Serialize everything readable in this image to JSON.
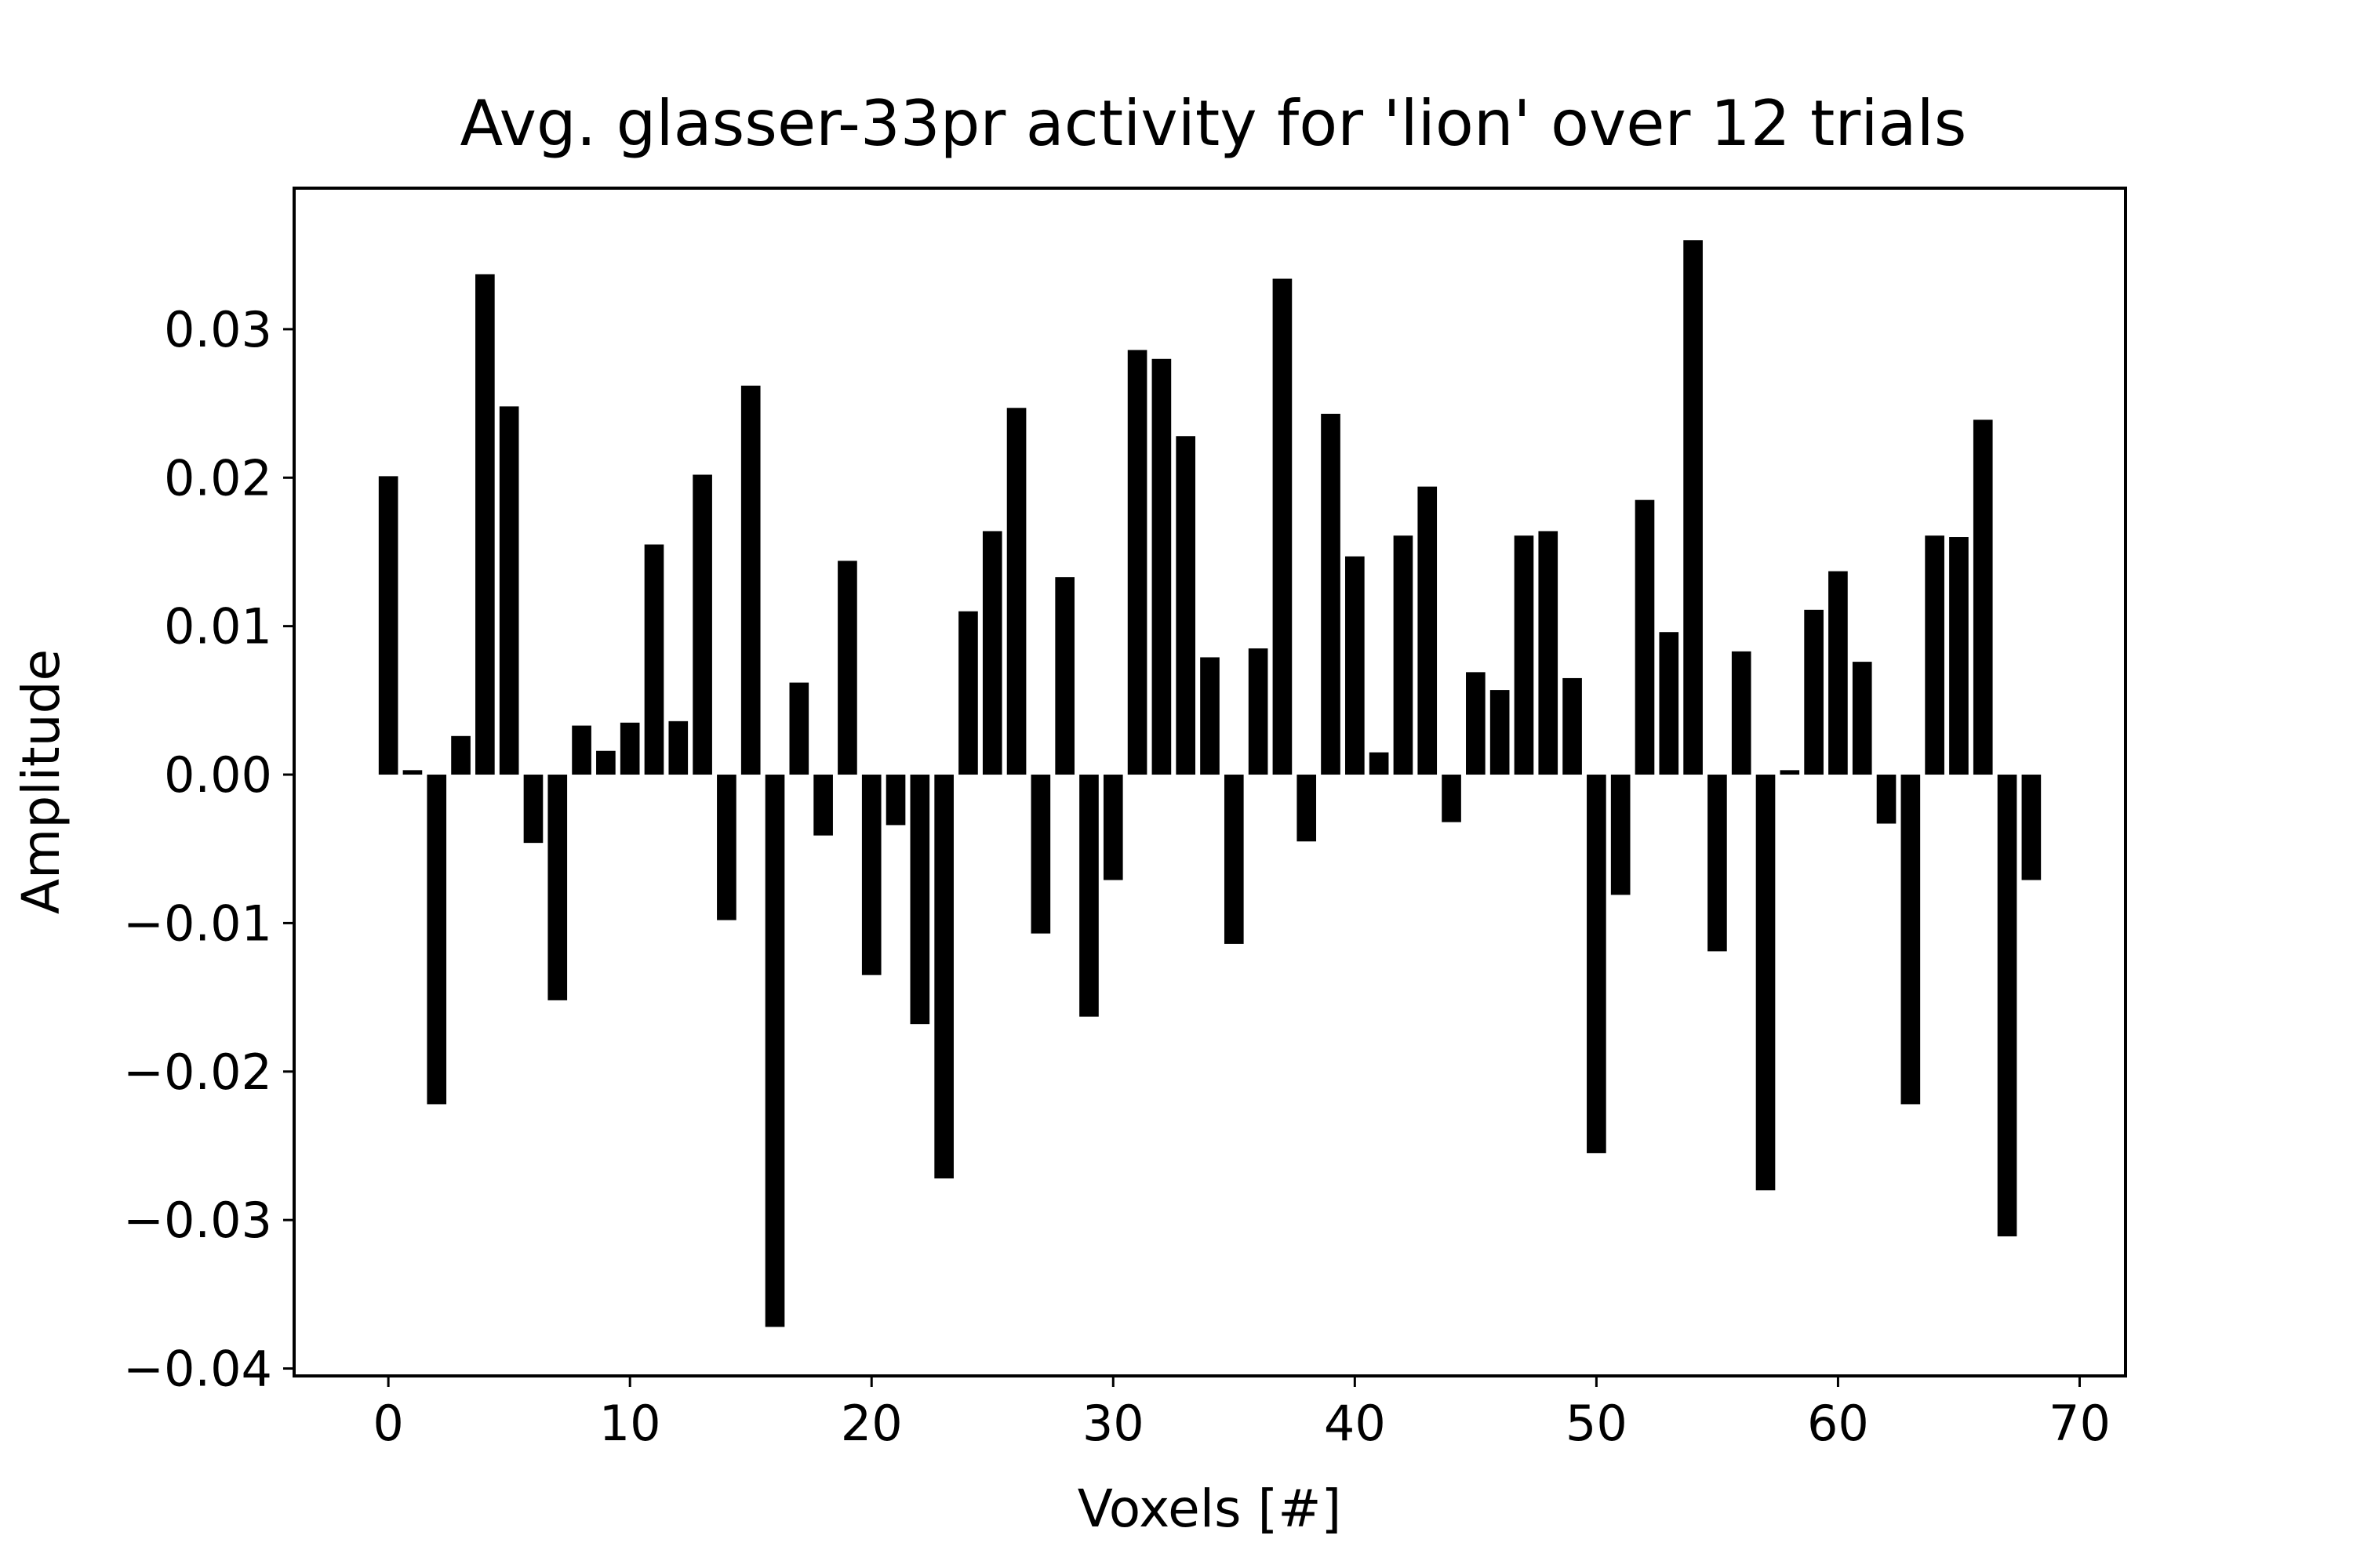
{
  "chart_data": {
    "type": "bar",
    "title": "Avg. glasser-33pr activity for 'lion' over 12 trials",
    "xlabel": "Voxels [#]",
    "ylabel": "Amplitude",
    "xlim": [
      -3.9,
      71.9
    ],
    "ylim": [
      -0.0405,
      0.0395
    ],
    "grid": false,
    "bar_color": "#000000",
    "xticks": [
      0,
      10,
      20,
      30,
      40,
      50,
      60,
      70
    ],
    "xtick_labels": [
      "0",
      "10",
      "20",
      "30",
      "40",
      "50",
      "60",
      "70"
    ],
    "yticks": [
      0.03,
      0.02,
      0.01,
      0.0,
      -0.01,
      -0.02,
      -0.03,
      -0.04
    ],
    "ytick_labels": [
      "0.03",
      "0.02",
      "0.01",
      "0.00",
      "−0.01",
      "−0.02",
      "−0.03",
      "−0.04"
    ],
    "x": [
      0,
      1,
      2,
      3,
      4,
      5,
      6,
      7,
      8,
      9,
      10,
      11,
      12,
      13,
      14,
      15,
      16,
      17,
      18,
      19,
      20,
      21,
      22,
      23,
      24,
      25,
      26,
      27,
      28,
      29,
      30,
      31,
      32,
      33,
      34,
      35,
      36,
      37,
      38,
      39,
      40,
      41,
      42,
      43,
      44,
      45,
      46,
      47,
      48,
      49,
      50,
      51,
      52,
      53,
      54,
      55,
      56,
      57,
      58,
      59,
      60,
      61,
      62,
      63,
      64,
      65,
      66,
      67,
      68
    ],
    "values": [
      0.0201,
      0.0003,
      -0.0222,
      0.0026,
      0.0337,
      0.0248,
      -0.0046,
      -0.0152,
      0.0033,
      0.0016,
      0.0035,
      0.0155,
      0.0036,
      0.0202,
      -0.0098,
      0.0262,
      -0.0372,
      0.0062,
      -0.0041,
      0.0144,
      -0.0135,
      -0.0034,
      -0.0168,
      -0.0272,
      0.011,
      0.0164,
      0.0247,
      -0.0107,
      0.0133,
      -0.0163,
      -0.0071,
      0.0286,
      0.028,
      0.0228,
      0.0079,
      -0.0114,
      0.0085,
      0.0334,
      -0.0045,
      0.0243,
      0.0147,
      0.0015,
      0.0161,
      0.0194,
      -0.0032,
      0.0069,
      0.0057,
      0.0161,
      0.0164,
      0.0065,
      -0.0255,
      -0.0081,
      0.0185,
      0.0096,
      0.036,
      -0.0119,
      0.0083,
      -0.028,
      0.0003,
      0.0111,
      0.0137,
      0.0076,
      -0.0033,
      -0.0222,
      0.0161,
      0.016,
      0.0239,
      -0.0311,
      -0.0071
    ]
  }
}
